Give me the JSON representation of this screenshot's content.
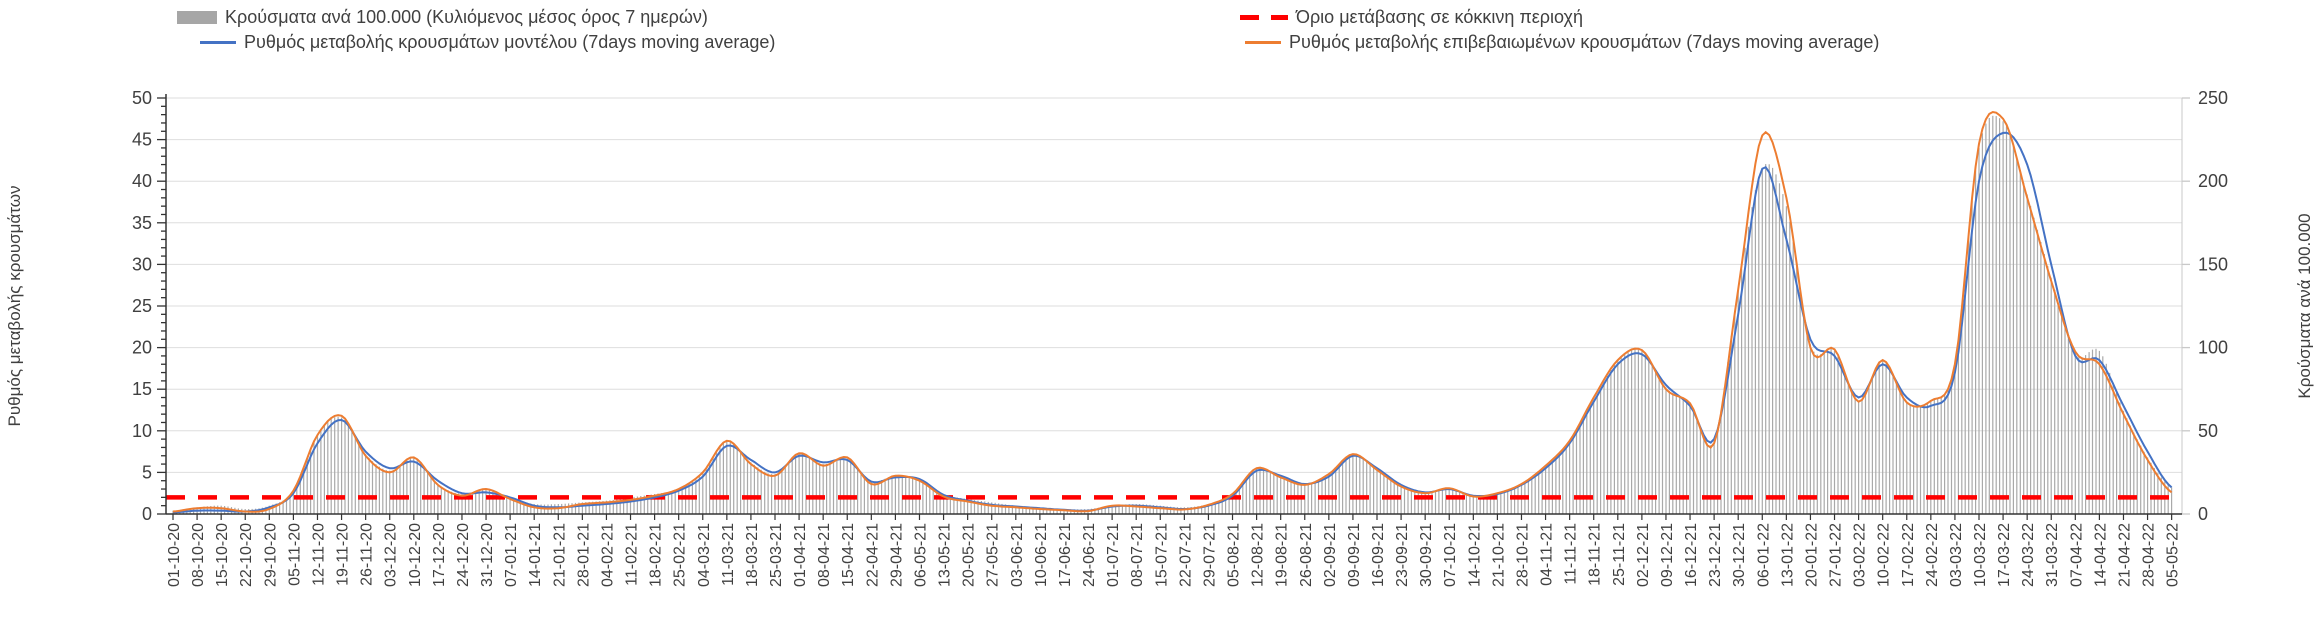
{
  "legend": {
    "items": [
      {
        "id": "bars",
        "label": "Κρούσματα ανά 100.000 (Κυλιόμενος μέσος όρος 7 ημερών)",
        "color": "#a6a6a6",
        "swatch": "bar"
      },
      {
        "id": "threshold",
        "label": "Όριο μετάβασης σε κόκκινη περιοχή",
        "color": "#ff0000",
        "swatch": "dashed"
      },
      {
        "id": "model",
        "label": "Ρυθμός μεταβολής κρουσμάτων μοντέλου (7days moving average)",
        "color": "#4472c4",
        "swatch": "line"
      },
      {
        "id": "confirmed",
        "label": "Ρυθμός μεταβολής επιβεβαιωμένων κρουσμάτων (7days moving average)",
        "color": "#ed7d31",
        "swatch": "line"
      }
    ]
  },
  "chart_data": {
    "type": "bar+line combo (dual axis)",
    "left_axis": {
      "label": "Ρυθμός μεταβολής κρουσμάτων",
      "min": 0,
      "max": 50,
      "step": 5,
      "minor_step": 1
    },
    "right_axis": {
      "label": "Κρούσματα ανά 100.000",
      "min": 0,
      "max": 250,
      "step": 50
    },
    "grid": "horizontal, every 5 left-units",
    "legend_position": "top, two columns",
    "x": [
      "01-10-20",
      "08-10-20",
      "15-10-20",
      "22-10-20",
      "29-10-20",
      "05-11-20",
      "12-11-20",
      "19-11-20",
      "26-11-20",
      "03-12-20",
      "10-12-20",
      "17-12-20",
      "24-12-20",
      "31-12-20",
      "07-01-21",
      "14-01-21",
      "21-01-21",
      "28-01-21",
      "04-02-21",
      "11-02-21",
      "18-02-21",
      "25-02-21",
      "04-03-21",
      "11-03-21",
      "18-03-21",
      "25-03-21",
      "01-04-21",
      "08-04-21",
      "15-04-21",
      "22-04-21",
      "29-04-21",
      "06-05-21",
      "13-05-21",
      "20-05-21",
      "27-05-21",
      "03-06-21",
      "10-06-21",
      "17-06-21",
      "24-06-21",
      "01-07-21",
      "08-07-21",
      "15-07-21",
      "22-07-21",
      "29-07-21",
      "05-08-21",
      "12-08-21",
      "19-08-21",
      "26-08-21",
      "02-09-21",
      "09-09-21",
      "16-09-21",
      "23-09-21",
      "30-09-21",
      "07-10-21",
      "14-10-21",
      "21-10-21",
      "28-10-21",
      "04-11-21",
      "11-11-21",
      "18-11-21",
      "25-11-21",
      "02-12-21",
      "09-12-21",
      "16-12-21",
      "23-12-21",
      "30-12-21",
      "06-01-22",
      "13-01-22",
      "20-01-22",
      "27-01-22",
      "03-02-22",
      "10-02-22",
      "17-02-22",
      "24-02-22",
      "03-03-22",
      "10-03-22",
      "17-03-22",
      "24-03-22",
      "31-03-22",
      "07-04-22",
      "14-04-22",
      "21-04-22",
      "28-04-22",
      "05-05-22"
    ],
    "series": [
      {
        "name": "Κρούσματα ανά 100.000 (Κυλιόμενος μέσος όρος 7 ημερών)",
        "type": "bar",
        "axis": "right",
        "color": "#a9a9a9",
        "values": [
          2,
          4,
          5,
          3,
          5,
          14,
          48,
          58,
          36,
          26,
          34,
          18,
          12,
          15,
          10,
          6,
          6,
          7,
          8,
          10,
          12,
          15,
          25,
          44,
          31,
          24,
          36,
          30,
          33,
          20,
          23,
          21,
          12,
          9,
          7,
          5,
          4,
          3,
          3,
          5,
          6,
          5,
          4,
          6,
          12,
          27,
          23,
          18,
          24,
          35,
          27,
          17,
          13,
          15,
          11,
          13,
          18,
          28,
          44,
          68,
          92,
          98,
          76,
          66,
          44,
          135,
          208,
          185,
          102,
          98,
          68,
          92,
          67,
          68,
          90,
          220,
          236,
          192,
          142,
          96,
          98,
          62,
          34,
          16
        ]
      },
      {
        "name": "Ρυθμός μεταβολής κρουσμάτων μοντέλου (7days moving average)",
        "type": "line",
        "axis": "left",
        "color": "#4472c4",
        "values": [
          0.2,
          0.4,
          0.4,
          0.3,
          0.8,
          2.5,
          8.5,
          11.3,
          7.5,
          5.5,
          6.3,
          4.0,
          2.5,
          2.6,
          2.0,
          1.0,
          0.8,
          1.0,
          1.2,
          1.5,
          2.0,
          2.8,
          4.5,
          8.2,
          6.5,
          5.0,
          7.0,
          6.2,
          6.5,
          3.9,
          4.4,
          4.2,
          2.3,
          1.6,
          1.1,
          0.9,
          0.7,
          0.5,
          0.4,
          0.9,
          1.0,
          0.8,
          0.6,
          1.0,
          2.2,
          5.2,
          4.6,
          3.6,
          4.5,
          7.0,
          5.5,
          3.5,
          2.6,
          3.0,
          2.2,
          2.4,
          3.5,
          5.5,
          8.5,
          13.5,
          18.0,
          19.2,
          15.5,
          13.0,
          9.0,
          24.0,
          41.5,
          33.0,
          21.0,
          19.0,
          14.0,
          18.0,
          14.0,
          13.0,
          17.0,
          40.0,
          45.8,
          42.0,
          30.0,
          19.0,
          18.5,
          13.0,
          7.5,
          3.2
        ]
      },
      {
        "name": "Ρυθμός μεταβολής επιβεβαιωμένων κρουσμάτων (7days moving average)",
        "type": "line",
        "axis": "left",
        "color": "#ed7d31",
        "values": [
          0.3,
          0.7,
          0.7,
          0.3,
          0.6,
          2.8,
          9.5,
          11.8,
          7.0,
          5.0,
          6.8,
          3.5,
          2.2,
          3.0,
          1.8,
          0.8,
          0.7,
          1.2,
          1.4,
          1.7,
          2.2,
          3.0,
          5.0,
          8.8,
          6.0,
          4.6,
          7.3,
          5.8,
          6.8,
          3.6,
          4.6,
          4.0,
          2.1,
          1.5,
          1.0,
          0.8,
          0.6,
          0.45,
          0.35,
          1.0,
          0.9,
          0.7,
          0.55,
          1.1,
          2.4,
          5.5,
          4.4,
          3.5,
          4.8,
          7.2,
          5.3,
          3.3,
          2.5,
          3.1,
          2.1,
          2.5,
          3.6,
          5.8,
          8.8,
          14.0,
          18.5,
          19.7,
          15.0,
          13.3,
          8.5,
          27.0,
          45.5,
          38.0,
          20.0,
          19.8,
          13.5,
          18.5,
          13.4,
          13.6,
          18.0,
          44.5,
          47.5,
          38.0,
          28.0,
          19.5,
          18.0,
          12.0,
          6.5,
          2.6
        ]
      },
      {
        "name": "Όριο μετάβασης σε κόκκινη περιοχή",
        "type": "hline",
        "axis": "left",
        "color": "#ff0000",
        "value": 2
      }
    ]
  },
  "colors": {
    "bars": "#a9a9a9",
    "model": "#4472c4",
    "confirmed": "#ed7d31",
    "threshold": "#ff0000",
    "grid": "#dedede",
    "axis": "#333333",
    "right_axis": "#c9c9c9",
    "text": "#404040"
  }
}
